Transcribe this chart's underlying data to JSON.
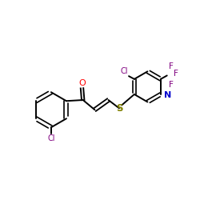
{
  "background_color": "#ffffff",
  "bond_color": "#000000",
  "O_color": "#ff0000",
  "N_color": "#0000cd",
  "S_color": "#808000",
  "Cl_color": "#800080",
  "F_color": "#800080",
  "figsize": [
    2.5,
    2.5
  ],
  "dpi": 100,
  "xlim": [
    0,
    10
  ],
  "ylim": [
    0,
    10
  ]
}
